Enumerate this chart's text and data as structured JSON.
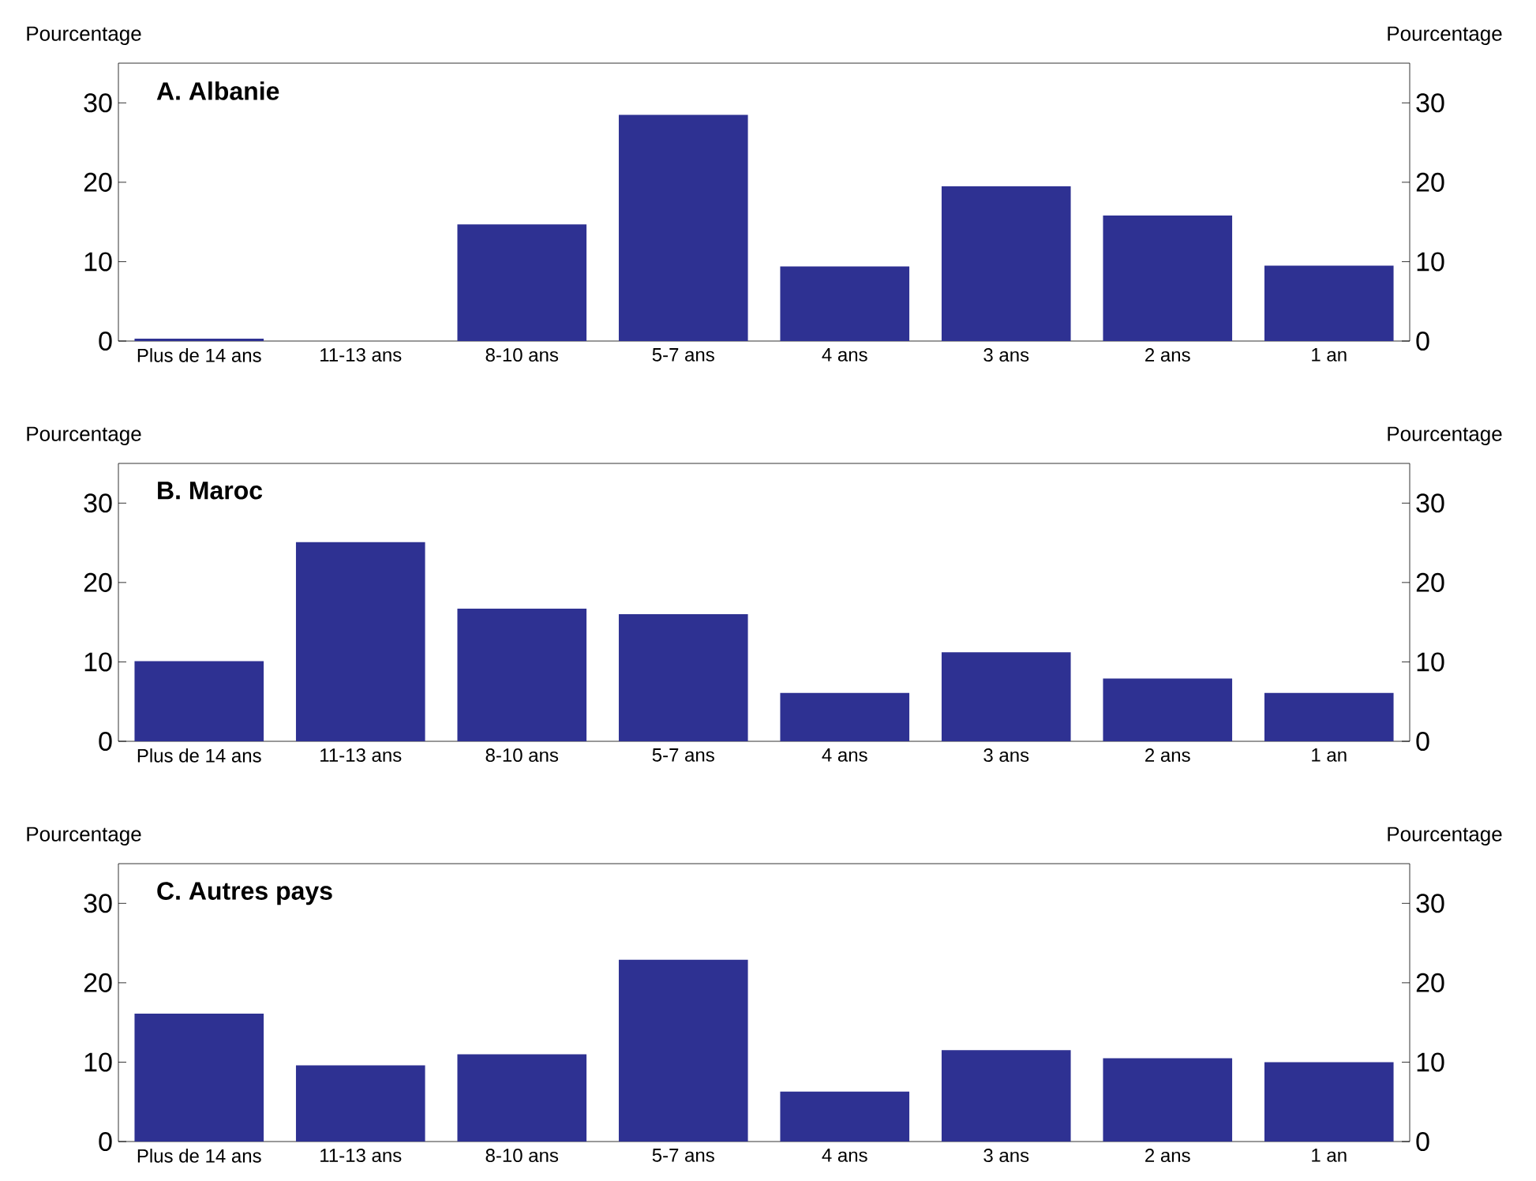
{
  "chart_data": [
    {
      "type": "bar",
      "title": "A. Albanie",
      "ylabel": "Pourcentage",
      "y2label": "Pourcentage",
      "categories": [
        "Plus de 14 ans",
        "11-13 ans",
        "8-10 ans",
        "5-7 ans",
        "4 ans",
        "3 ans",
        "2 ans",
        "1 an"
      ],
      "values": [
        0.3,
        0,
        14.7,
        28.5,
        9.4,
        19.5,
        15.8,
        9.5
      ],
      "color": "#2e3192",
      "ylim": [
        0,
        35
      ],
      "yticks": [
        0,
        10,
        20,
        30
      ],
      "y2lim": [
        0,
        35
      ],
      "y2ticks": [
        0,
        10,
        20,
        30
      ]
    },
    {
      "type": "bar",
      "title": "B. Maroc",
      "ylabel": "Pourcentage",
      "y2label": "Pourcentage",
      "categories": [
        "Plus de 14 ans",
        "11-13 ans",
        "8-10 ans",
        "5-7 ans",
        "4 ans",
        "3 ans",
        "2 ans",
        "1 an"
      ],
      "values": [
        10.1,
        25.1,
        16.7,
        16.0,
        6.1,
        11.2,
        7.9,
        6.1
      ],
      "color": "#2e3192",
      "ylim": [
        0,
        35
      ],
      "yticks": [
        0,
        10,
        20,
        30
      ],
      "y2lim": [
        0,
        35
      ],
      "y2ticks": [
        0,
        10,
        20,
        30
      ]
    },
    {
      "type": "bar",
      "title": "C. Autres pays",
      "ylabel": "Pourcentage",
      "y2label": "Pourcentage",
      "categories": [
        "Plus de 14 ans",
        "11-13 ans",
        "8-10 ans",
        "5-7 ans",
        "4 ans",
        "3 ans",
        "2 ans",
        "1 an"
      ],
      "values": [
        16.1,
        9.6,
        11.0,
        22.9,
        6.3,
        11.5,
        10.5,
        10.0
      ],
      "color": "#2e3192",
      "ylim": [
        0,
        35
      ],
      "yticks": [
        0,
        10,
        20,
        30
      ],
      "y2lim": [
        0,
        35
      ],
      "y2ticks": [
        0,
        10,
        20,
        30
      ]
    }
  ]
}
